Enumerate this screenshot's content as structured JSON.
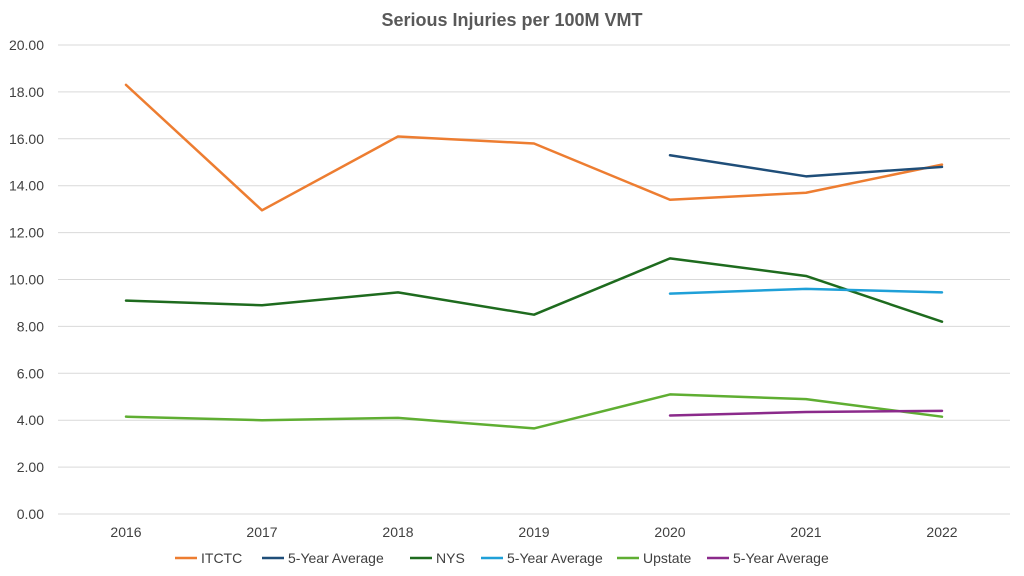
{
  "chart_data": {
    "type": "line",
    "title": "Serious Injuries per 100M VMT",
    "xlabel": "",
    "ylabel": "",
    "categories": [
      "2016",
      "2017",
      "2018",
      "2019",
      "2020",
      "2021",
      "2022"
    ],
    "ylim": [
      0,
      20
    ],
    "yticks": [
      "0.00",
      "2.00",
      "4.00",
      "6.00",
      "8.00",
      "10.00",
      "12.00",
      "14.00",
      "16.00",
      "18.00",
      "20.00"
    ],
    "grid": true,
    "legend_position": "bottom",
    "series": [
      {
        "name": "ITCTC",
        "color": "#ed7d31",
        "values": [
          18.3,
          12.95,
          16.1,
          15.8,
          13.4,
          13.7,
          14.9
        ]
      },
      {
        "name": "5-Year Average",
        "color": "#1f4e79",
        "values": [
          null,
          null,
          null,
          null,
          15.3,
          14.4,
          14.8
        ]
      },
      {
        "name": "NYS",
        "color": "#1e6b1e",
        "values": [
          9.1,
          8.9,
          9.45,
          8.5,
          10.9,
          10.15,
          8.2
        ]
      },
      {
        "name": "5-Year Average",
        "color": "#1fa0d8",
        "values": [
          null,
          null,
          null,
          null,
          9.4,
          9.6,
          9.45
        ]
      },
      {
        "name": "Upstate",
        "color": "#5fae32",
        "values": [
          4.15,
          4.0,
          4.1,
          3.65,
          5.1,
          4.9,
          4.15
        ]
      },
      {
        "name": "5-Year Average",
        "color": "#8b2a8b",
        "values": [
          null,
          null,
          null,
          null,
          4.2,
          4.35,
          4.4
        ]
      }
    ]
  }
}
